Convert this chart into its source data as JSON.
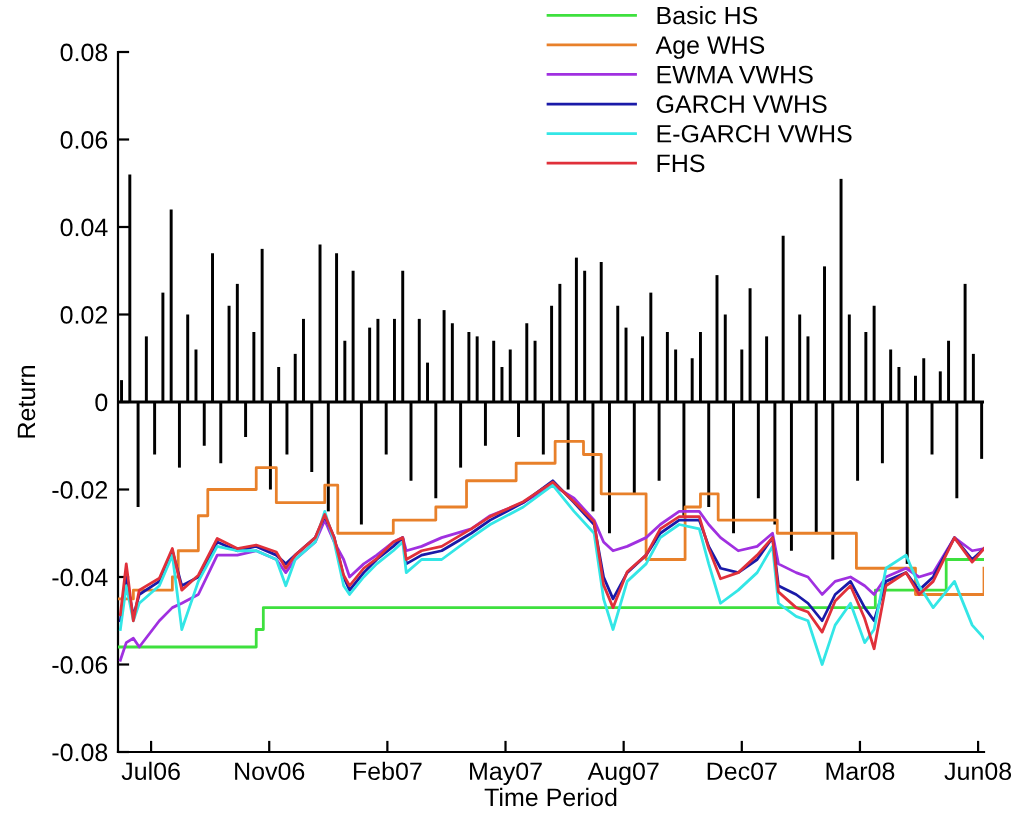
{
  "chart_data": {
    "type": "line",
    "xlabel": "Time Period",
    "ylabel": "Return",
    "legend": "top right",
    "grid": false,
    "xlim": [
      "2006-06-27",
      "2008-06-29"
    ],
    "ylim": [
      -0.08,
      0.08
    ],
    "yticks": [
      -0.08,
      -0.06,
      -0.04,
      -0.02,
      0,
      0.02,
      0.04,
      0.06,
      0.08
    ],
    "xticks": [
      {
        "value": "2006-07-25",
        "label": "Jul06"
      },
      {
        "value": "2006-11-02",
        "label": "Nov06"
      },
      {
        "value": "2007-02-10",
        "label": "Feb07"
      },
      {
        "value": "2007-05-21",
        "label": "May07"
      },
      {
        "value": "2007-08-29",
        "label": "Aug07"
      },
      {
        "value": "2007-12-07",
        "label": "Dec07"
      },
      {
        "value": "2008-03-16",
        "label": "Mar08"
      },
      {
        "value": "2008-06-24",
        "label": "Jun08"
      }
    ],
    "ref_lines": [
      {
        "axis": "y",
        "value": 0,
        "color": "#000000"
      }
    ],
    "series": [
      {
        "type": "bar",
        "color": "#000000",
        "x": [
          "2006-06-30",
          "2006-07-07",
          "2006-07-14",
          "2006-07-21",
          "2006-07-28",
          "2006-08-04",
          "2006-08-11",
          "2006-08-18",
          "2006-08-25",
          "2006-09-01",
          "2006-09-08",
          "2006-09-15",
          "2006-09-22",
          "2006-09-29",
          "2006-10-06",
          "2006-10-13",
          "2006-10-20",
          "2006-10-27",
          "2006-11-03",
          "2006-11-10",
          "2006-11-17",
          "2006-11-24",
          "2006-12-01",
          "2006-12-08",
          "2006-12-15",
          "2006-12-22",
          "2006-12-29",
          "2007-01-05",
          "2007-01-12",
          "2007-01-19",
          "2007-01-26",
          "2007-02-02",
          "2007-02-09",
          "2007-02-16",
          "2007-02-23",
          "2007-03-02",
          "2007-03-09",
          "2007-03-16",
          "2007-03-23",
          "2007-03-30",
          "2007-04-06",
          "2007-04-13",
          "2007-04-20",
          "2007-04-27",
          "2007-05-04",
          "2007-05-11",
          "2007-05-18",
          "2007-05-25",
          "2007-06-01",
          "2007-06-08",
          "2007-06-15",
          "2007-06-22",
          "2007-06-29",
          "2007-07-06",
          "2007-07-13",
          "2007-07-20",
          "2007-07-27",
          "2007-08-03",
          "2007-08-10",
          "2007-08-17",
          "2007-08-24",
          "2007-08-31",
          "2007-09-07",
          "2007-09-14",
          "2007-09-21",
          "2007-09-28",
          "2007-10-05",
          "2007-10-12",
          "2007-10-19",
          "2007-10-26",
          "2007-11-02",
          "2007-11-09",
          "2007-11-16",
          "2007-11-23",
          "2007-11-30",
          "2007-12-07",
          "2007-12-14",
          "2007-12-21",
          "2007-12-28",
          "2008-01-04",
          "2008-01-11",
          "2008-01-18",
          "2008-01-25",
          "2008-02-01",
          "2008-02-08",
          "2008-02-15",
          "2008-02-22",
          "2008-02-29",
          "2008-03-07",
          "2008-03-14",
          "2008-03-21",
          "2008-03-28",
          "2008-04-04",
          "2008-04-11",
          "2008-04-18",
          "2008-04-25",
          "2008-05-02",
          "2008-05-09",
          "2008-05-16",
          "2008-05-23",
          "2008-05-30",
          "2008-06-06",
          "2008-06-13",
          "2008-06-20",
          "2008-06-27"
        ],
        "values": [
          0.005,
          0.052,
          -0.024,
          0.015,
          -0.012,
          0.025,
          0.044,
          -0.015,
          0.02,
          0.012,
          -0.01,
          0.034,
          -0.014,
          0.022,
          0.027,
          -0.008,
          0.016,
          0.035,
          -0.02,
          0.008,
          -0.012,
          0.011,
          0.019,
          -0.016,
          0.036,
          -0.025,
          0.034,
          0.014,
          0.03,
          -0.028,
          0.017,
          0.019,
          -0.012,
          0.019,
          0.03,
          -0.018,
          0.019,
          0.009,
          -0.022,
          0.021,
          0.018,
          -0.015,
          0.016,
          0.015,
          -0.01,
          0.014,
          0.008,
          0.012,
          -0.008,
          0.018,
          0.014,
          -0.012,
          0.022,
          0.027,
          -0.02,
          0.033,
          0.03,
          -0.025,
          0.032,
          -0.03,
          0.022,
          0.017,
          -0.021,
          0.015,
          0.025,
          -0.018,
          0.016,
          0.012,
          -0.026,
          0.01,
          0.016,
          -0.024,
          0.029,
          0.02,
          -0.03,
          0.012,
          0.026,
          -0.022,
          0.015,
          -0.028,
          0.038,
          -0.034,
          0.02,
          0.015,
          -0.03,
          0.031,
          -0.036,
          0.051,
          0.02,
          -0.018,
          0.016,
          0.022,
          -0.014,
          0.012,
          0.008,
          -0.037,
          0.006,
          0.01,
          -0.012,
          0.007,
          0.014,
          -0.022,
          0.027,
          0.011,
          -0.013
        ]
      },
      {
        "type": "step",
        "name": "Basic HS",
        "color": "#3ee03e",
        "x": [
          "2006-06-27",
          "2006-10-22",
          "2006-10-28",
          "2006-11-02",
          "2008-03-29",
          "2008-05-28",
          "2008-06-29"
        ],
        "values": [
          -0.056,
          -0.052,
          -0.047,
          -0.047,
          -0.043,
          -0.036,
          -0.036
        ]
      },
      {
        "type": "step",
        "name": "Age WHS",
        "color": "#e8802a",
        "x": [
          "2006-06-27",
          "2006-07-10",
          "2006-08-12",
          "2006-08-17",
          "2006-09-03",
          "2006-09-11",
          "2006-10-22",
          "2006-11-08",
          "2006-12-19",
          "2006-12-30",
          "2007-02-15",
          "2007-03-23",
          "2007-04-18",
          "2007-05-30",
          "2007-07-02",
          "2007-07-26",
          "2007-08-10",
          "2007-09-17",
          "2007-10-20",
          "2007-11-02",
          "2007-11-17",
          "2008-01-06",
          "2008-03-13",
          "2008-05-02",
          "2008-06-29"
        ],
        "values": [
          -0.045,
          -0.043,
          -0.04,
          -0.034,
          -0.026,
          -0.02,
          -0.015,
          -0.023,
          -0.019,
          -0.03,
          -0.027,
          -0.024,
          -0.018,
          -0.014,
          -0.009,
          -0.012,
          -0.021,
          -0.036,
          -0.024,
          -0.021,
          -0.027,
          -0.03,
          -0.038,
          -0.044,
          -0.038
        ]
      },
      {
        "name": "EWMA VWHS",
        "color": "#a030e0",
        "x": [
          "2006-06-29",
          "2006-07-04",
          "2006-07-10",
          "2006-07-15",
          "2006-08-01",
          "2006-08-12",
          "2006-08-20",
          "2006-09-03",
          "2006-09-19",
          "2006-10-06",
          "2006-10-22",
          "2006-11-08",
          "2006-11-16",
          "2006-11-24",
          "2006-12-11",
          "2006-12-19",
          "2006-12-27",
          "2007-01-04",
          "2007-01-09",
          "2007-01-21",
          "2007-02-01",
          "2007-02-15",
          "2007-02-23",
          "2007-02-26",
          "2007-03-11",
          "2007-03-28",
          "2007-04-22",
          "2007-05-08",
          "2007-06-05",
          "2007-06-30",
          "2007-07-18",
          "2007-08-04",
          "2007-08-12",
          "2007-08-20",
          "2007-09-01",
          "2007-09-17",
          "2007-09-29",
          "2007-10-15",
          "2007-11-01",
          "2007-11-09",
          "2007-11-19",
          "2007-12-04",
          "2007-12-20",
          "2008-01-02",
          "2008-01-07",
          "2008-01-22",
          "2008-02-01",
          "2008-02-13",
          "2008-02-24",
          "2008-03-08",
          "2008-03-20",
          "2008-03-28",
          "2008-04-07",
          "2008-04-24",
          "2008-05-05",
          "2008-05-17",
          "2008-06-04",
          "2008-06-19",
          "2008-06-29"
        ],
        "values": [
          -0.059,
          -0.055,
          -0.054,
          -0.056,
          -0.05,
          -0.047,
          -0.046,
          -0.044,
          -0.035,
          -0.035,
          -0.034,
          -0.036,
          -0.039,
          -0.036,
          -0.032,
          -0.027,
          -0.032,
          -0.036,
          -0.04,
          -0.037,
          -0.035,
          -0.032,
          -0.031,
          -0.034,
          -0.033,
          -0.031,
          -0.029,
          -0.026,
          -0.023,
          -0.019,
          -0.022,
          -0.027,
          -0.032,
          -0.034,
          -0.033,
          -0.031,
          -0.028,
          -0.025,
          -0.025,
          -0.028,
          -0.031,
          -0.034,
          -0.033,
          -0.03,
          -0.037,
          -0.039,
          -0.04,
          -0.044,
          -0.041,
          -0.04,
          -0.042,
          -0.044,
          -0.04,
          -0.038,
          -0.04,
          -0.039,
          -0.031,
          -0.034,
          -0.0335
        ]
      },
      {
        "name": "GARCH VWHS",
        "color": "#1a1aa8",
        "x": [
          "2006-06-29",
          "2006-07-04",
          "2006-07-10",
          "2006-07-15",
          "2006-08-01",
          "2006-08-12",
          "2006-08-20",
          "2006-09-03",
          "2006-09-19",
          "2006-10-06",
          "2006-10-22",
          "2006-11-08",
          "2006-11-16",
          "2006-11-24",
          "2006-12-11",
          "2006-12-19",
          "2006-12-27",
          "2007-01-04",
          "2007-01-09",
          "2007-01-21",
          "2007-02-01",
          "2007-02-15",
          "2007-02-23",
          "2007-02-26",
          "2007-03-11",
          "2007-03-28",
          "2007-04-22",
          "2007-05-08",
          "2007-06-05",
          "2007-06-30",
          "2007-07-18",
          "2007-08-04",
          "2007-08-12",
          "2007-08-20",
          "2007-09-01",
          "2007-09-17",
          "2007-09-29",
          "2007-10-15",
          "2007-11-01",
          "2007-11-09",
          "2007-11-19",
          "2007-12-04",
          "2007-12-20",
          "2008-01-02",
          "2008-01-07",
          "2008-01-22",
          "2008-02-01",
          "2008-02-13",
          "2008-02-24",
          "2008-03-08",
          "2008-03-20",
          "2008-03-28",
          "2008-04-07",
          "2008-04-24",
          "2008-05-05",
          "2008-05-17",
          "2008-06-04",
          "2008-06-19",
          "2008-06-29"
        ],
        "values": [
          -0.05,
          -0.04,
          -0.049,
          -0.044,
          -0.041,
          -0.034,
          -0.042,
          -0.04,
          -0.032,
          -0.034,
          -0.033,
          -0.035,
          -0.037,
          -0.035,
          -0.031,
          -0.026,
          -0.031,
          -0.04,
          -0.043,
          -0.039,
          -0.036,
          -0.033,
          -0.031,
          -0.037,
          -0.035,
          -0.034,
          -0.03,
          -0.027,
          -0.023,
          -0.018,
          -0.023,
          -0.028,
          -0.04,
          -0.045,
          -0.039,
          -0.035,
          -0.03,
          -0.027,
          -0.027,
          -0.033,
          -0.038,
          -0.039,
          -0.036,
          -0.031,
          -0.042,
          -0.044,
          -0.046,
          -0.05,
          -0.044,
          -0.041,
          -0.047,
          -0.05,
          -0.041,
          -0.039,
          -0.043,
          -0.04,
          -0.031,
          -0.036,
          -0.0335
        ]
      },
      {
        "name": "E-GARCH VWHS",
        "color": "#33e6e6",
        "x": [
          "2006-06-29",
          "2006-07-04",
          "2006-07-10",
          "2006-07-15",
          "2006-08-01",
          "2006-08-12",
          "2006-08-20",
          "2006-09-03",
          "2006-09-19",
          "2006-10-06",
          "2006-10-22",
          "2006-11-08",
          "2006-11-16",
          "2006-11-24",
          "2006-12-11",
          "2006-12-19",
          "2006-12-27",
          "2007-01-04",
          "2007-01-09",
          "2007-01-21",
          "2007-02-01",
          "2007-02-15",
          "2007-02-23",
          "2007-02-26",
          "2007-03-11",
          "2007-03-28",
          "2007-04-22",
          "2007-05-08",
          "2007-06-05",
          "2007-06-30",
          "2007-07-18",
          "2007-08-04",
          "2007-08-12",
          "2007-08-20",
          "2007-09-01",
          "2007-09-17",
          "2007-09-29",
          "2007-10-15",
          "2007-11-01",
          "2007-11-09",
          "2007-11-19",
          "2007-12-04",
          "2007-12-20",
          "2008-01-02",
          "2008-01-07",
          "2008-01-22",
          "2008-02-01",
          "2008-02-13",
          "2008-02-24",
          "2008-03-08",
          "2008-03-20",
          "2008-03-28",
          "2008-04-07",
          "2008-04-24",
          "2008-05-05",
          "2008-05-17",
          "2008-06-04",
          "2008-06-19",
          "2008-06-29"
        ],
        "values": [
          -0.052,
          -0.042,
          -0.05,
          -0.046,
          -0.042,
          -0.035,
          -0.052,
          -0.041,
          -0.033,
          -0.034,
          -0.034,
          -0.036,
          -0.042,
          -0.036,
          -0.032,
          -0.025,
          -0.032,
          -0.042,
          -0.044,
          -0.04,
          -0.037,
          -0.034,
          -0.032,
          -0.039,
          -0.036,
          -0.036,
          -0.031,
          -0.028,
          -0.024,
          -0.019,
          -0.025,
          -0.03,
          -0.045,
          -0.052,
          -0.041,
          -0.037,
          -0.031,
          -0.028,
          -0.029,
          -0.037,
          -0.046,
          -0.043,
          -0.039,
          -0.033,
          -0.046,
          -0.049,
          -0.05,
          -0.06,
          -0.051,
          -0.046,
          -0.055,
          -0.052,
          -0.038,
          -0.035,
          -0.042,
          -0.047,
          -0.041,
          -0.051,
          -0.054
        ]
      },
      {
        "name": "FHS",
        "color": "#e0303a",
        "x": [
          "2006-06-29",
          "2006-07-04",
          "2006-07-10",
          "2006-07-15",
          "2006-08-01",
          "2006-08-12",
          "2006-08-20",
          "2006-09-03",
          "2006-09-19",
          "2006-10-06",
          "2006-10-22",
          "2006-11-08",
          "2006-11-16",
          "2006-11-24",
          "2006-12-11",
          "2006-12-19",
          "2006-12-27",
          "2007-01-04",
          "2007-01-09",
          "2007-01-21",
          "2007-02-01",
          "2007-02-15",
          "2007-02-23",
          "2007-02-26",
          "2007-03-11",
          "2007-03-28",
          "2007-04-22",
          "2007-05-08",
          "2007-06-05",
          "2007-06-30",
          "2007-07-18",
          "2007-08-04",
          "2007-08-12",
          "2007-08-20",
          "2007-09-01",
          "2007-09-17",
          "2007-09-29",
          "2007-10-15",
          "2007-11-01",
          "2007-11-09",
          "2007-11-19",
          "2007-12-04",
          "2007-12-20",
          "2008-01-02",
          "2008-01-07",
          "2008-01-22",
          "2008-02-01",
          "2008-02-13",
          "2008-02-24",
          "2008-03-08",
          "2008-03-20",
          "2008-03-28",
          "2008-04-07",
          "2008-04-24",
          "2008-05-05",
          "2008-05-17",
          "2008-06-04",
          "2008-06-19",
          "2008-06-29"
        ],
        "values": [
          -0.0486,
          -0.037,
          -0.05,
          -0.043,
          -0.0403,
          -0.0335,
          -0.043,
          -0.0396,
          -0.0312,
          -0.0335,
          -0.0327,
          -0.0343,
          -0.038,
          -0.035,
          -0.031,
          -0.0257,
          -0.031,
          -0.0396,
          -0.042,
          -0.038,
          -0.0358,
          -0.032,
          -0.031,
          -0.036,
          -0.034,
          -0.033,
          -0.029,
          -0.0262,
          -0.0228,
          -0.0183,
          -0.0228,
          -0.0274,
          -0.0418,
          -0.047,
          -0.0388,
          -0.035,
          -0.029,
          -0.0262,
          -0.0262,
          -0.0335,
          -0.0404,
          -0.039,
          -0.035,
          -0.031,
          -0.0434,
          -0.047,
          -0.048,
          -0.0526,
          -0.0455,
          -0.042,
          -0.0495,
          -0.0564,
          -0.042,
          -0.039,
          -0.044,
          -0.041,
          -0.031,
          -0.0366,
          -0.0335
        ]
      }
    ]
  }
}
